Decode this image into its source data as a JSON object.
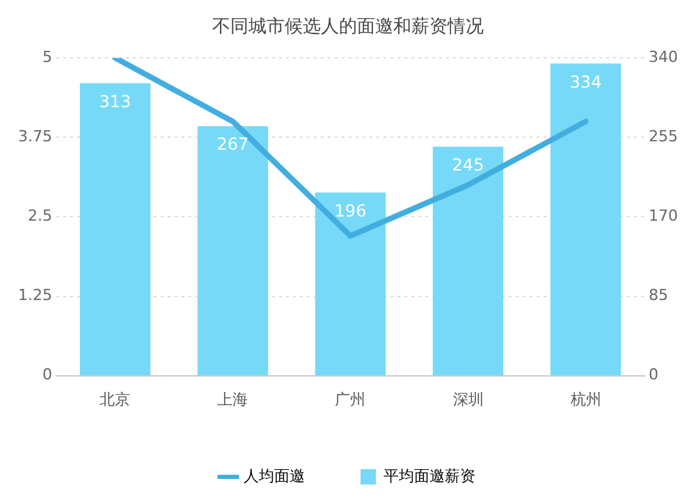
{
  "chart_data": {
    "type": "bar",
    "title": "不同城市候选人的面邀和薪资情况",
    "categories": [
      "北京",
      "上海",
      "广州",
      "深圳",
      "杭州"
    ],
    "series": [
      {
        "name": "人均面邀",
        "type": "line",
        "color": "#42aee0",
        "values": [
          5,
          4,
          2.2,
          3,
          4
        ]
      },
      {
        "name": "平均面邀薪资",
        "color": "#76d9f7",
        "axis": "y2",
        "values": [
          313,
          267,
          196,
          245,
          334
        ]
      }
    ],
    "ylim": [
      0,
      5
    ],
    "yticks": [
      0,
      1.25,
      2.5,
      3.75,
      5
    ],
    "y2lim": [
      0,
      340
    ],
    "y2ticks": [
      0,
      85,
      170,
      255,
      340
    ],
    "grid": "y",
    "legend": "bottom",
    "marker": "none",
    "line_style": "solid",
    "value_labels": [
      null,
      [
        "313",
        "267",
        "196",
        "245",
        "334"
      ]
    ]
  }
}
